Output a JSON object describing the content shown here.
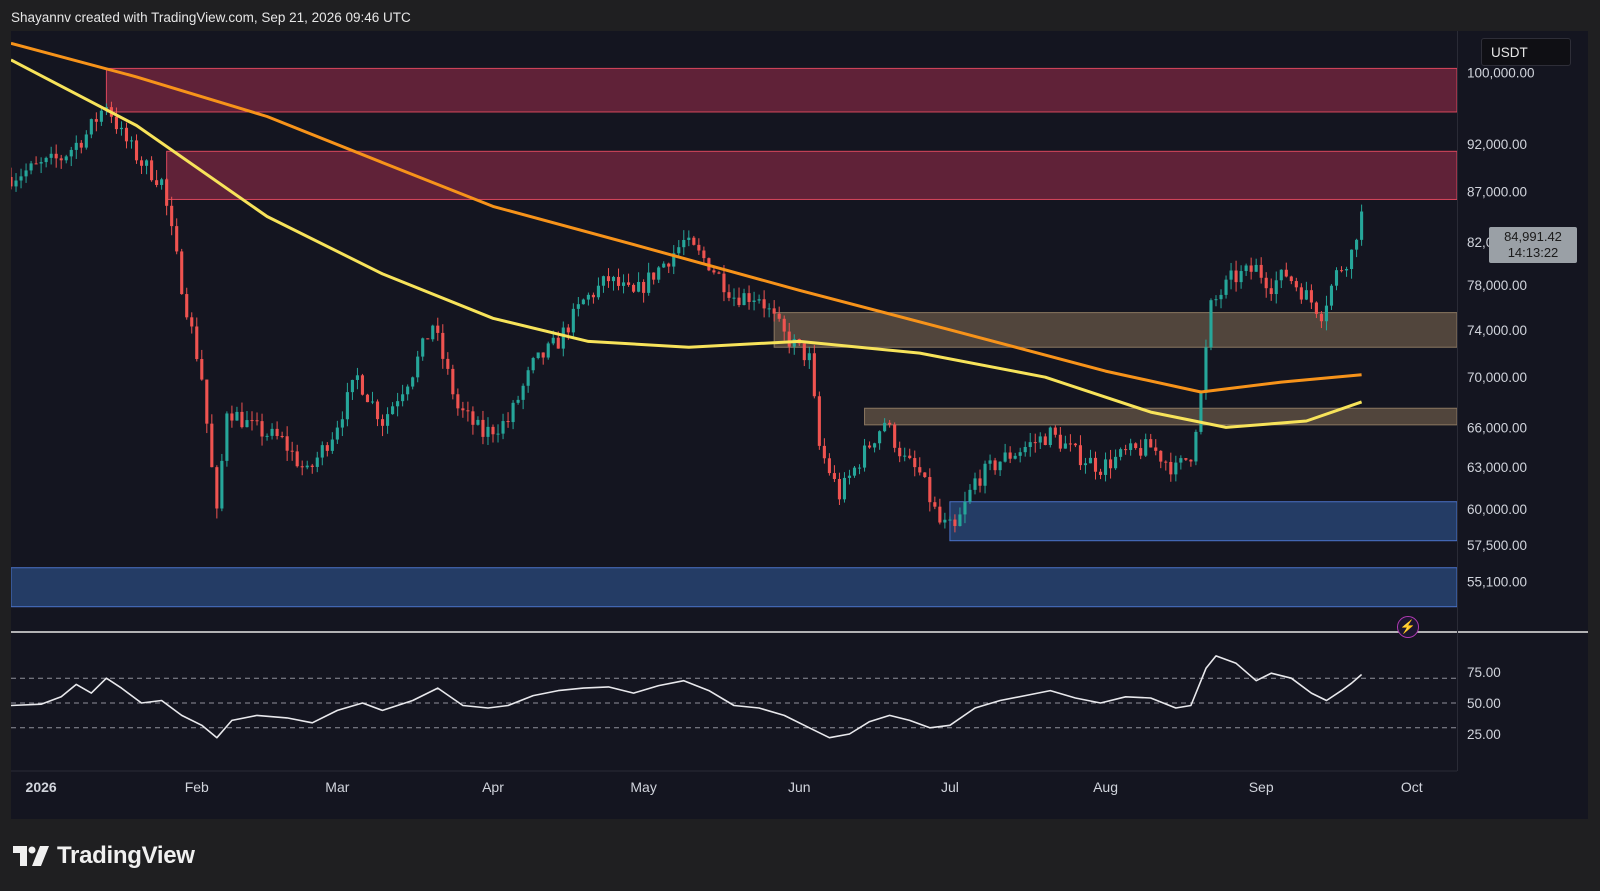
{
  "header": {
    "credit": "Shayannv created with TradingView.com, Sep 21, 2026 09:46 UTC"
  },
  "price_scale": {
    "currency": "USDT",
    "last_price": "84,991.42",
    "countdown": "14:13:22"
  },
  "brand": {
    "name": "TradingView"
  },
  "colors": {
    "background": "#141520",
    "up_candle": "#26a69a",
    "down_candle": "#ef5350",
    "ma_fast": "#f7e35a",
    "ma_slow": "#f7931a",
    "supply_zone": "#7a2740",
    "support_zone": "#2a4a7c",
    "order_block": "#6b5a48",
    "rsi_line": "#e8e8ec"
  },
  "chart_data": [
    {
      "type": "candlestick",
      "symbol_currency": "USDT",
      "yscale": "log",
      "ylim": [
        52000,
        105000
      ],
      "y_ticks": [
        {
          "value": 100000,
          "label": "100,000.00"
        },
        {
          "value": 92000,
          "label": "92,000.00"
        },
        {
          "value": 87000,
          "label": "87,000.00"
        },
        {
          "value": 82000,
          "label": "82,000.00"
        },
        {
          "value": 78000,
          "label": "78,000.00"
        },
        {
          "value": 74000,
          "label": "74,000.00"
        },
        {
          "value": 70000,
          "label": "70,000.00"
        },
        {
          "value": 66000,
          "label": "66,000.00"
        },
        {
          "value": 63000,
          "label": "63,000.00"
        },
        {
          "value": 60000,
          "label": "60,000.00"
        },
        {
          "value": 57500,
          "label": "57,500.00"
        },
        {
          "value": 55100,
          "label": "55,100.00"
        }
      ],
      "x_ticks": [
        {
          "date": "2026-01-01",
          "label": "2026"
        },
        {
          "date": "2026-02-01",
          "label": "Feb"
        },
        {
          "date": "2026-03-01",
          "label": "Mar"
        },
        {
          "date": "2026-04-01",
          "label": "Apr"
        },
        {
          "date": "2026-05-01",
          "label": "May"
        },
        {
          "date": "2026-06-01",
          "label": "Jun"
        },
        {
          "date": "2026-07-01",
          "label": "Jul"
        },
        {
          "date": "2026-08-01",
          "label": "Aug"
        },
        {
          "date": "2026-09-01",
          "label": "Sep"
        },
        {
          "date": "2026-10-01",
          "label": "Oct"
        }
      ],
      "xlim": [
        "2025-12-26",
        "2026-10-10"
      ],
      "last_price": 84991.42,
      "price_path": [
        [
          "2025-12-26",
          88500
        ],
        [
          "2026-01-05",
          90500
        ],
        [
          "2026-01-10",
          93000
        ],
        [
          "2026-01-14",
          96500
        ],
        [
          "2026-01-17",
          93000
        ],
        [
          "2026-01-21",
          90000
        ],
        [
          "2026-01-25",
          88000
        ],
        [
          "2026-01-29",
          78000
        ],
        [
          "2026-02-02",
          70000
        ],
        [
          "2026-02-05",
          59500
        ],
        [
          "2026-02-07",
          67500
        ],
        [
          "2026-02-12",
          66000
        ],
        [
          "2026-02-18",
          65000
        ],
        [
          "2026-02-23",
          62500
        ],
        [
          "2026-02-28",
          65500
        ],
        [
          "2026-03-05",
          70000
        ],
        [
          "2026-03-10",
          66500
        ],
        [
          "2026-03-16",
          70500
        ],
        [
          "2026-03-20",
          74500
        ],
        [
          "2026-03-25",
          67500
        ],
        [
          "2026-03-30",
          65500
        ],
        [
          "2026-04-04",
          66500
        ],
        [
          "2026-04-09",
          71000
        ],
        [
          "2026-04-14",
          73000
        ],
        [
          "2026-04-19",
          76500
        ],
        [
          "2026-04-24",
          78500
        ],
        [
          "2026-04-29",
          77000
        ],
        [
          "2026-05-04",
          79500
        ],
        [
          "2026-05-09",
          82000
        ],
        [
          "2026-05-14",
          80000
        ],
        [
          "2026-05-19",
          77000
        ],
        [
          "2026-05-24",
          77000
        ],
        [
          "2026-05-29",
          73500
        ],
        [
          "2026-06-03",
          71500
        ],
        [
          "2026-06-05",
          64500
        ],
        [
          "2026-06-09",
          61000
        ],
        [
          "2026-06-13",
          63500
        ],
        [
          "2026-06-18",
          66500
        ],
        [
          "2026-06-22",
          63500
        ],
        [
          "2026-06-25",
          62500
        ],
        [
          "2026-06-29",
          59000
        ],
        [
          "2026-07-02",
          58500
        ],
        [
          "2026-07-06",
          62000
        ],
        [
          "2026-07-11",
          63500
        ],
        [
          "2026-07-16",
          64500
        ],
        [
          "2026-07-21",
          65500
        ],
        [
          "2026-07-26",
          64000
        ],
        [
          "2026-07-31",
          63000
        ],
        [
          "2026-08-05",
          64000
        ],
        [
          "2026-08-10",
          64500
        ],
        [
          "2026-08-15",
          62800
        ],
        [
          "2026-08-18",
          64000
        ],
        [
          "2026-08-20",
          68500
        ],
        [
          "2026-08-22",
          76000
        ],
        [
          "2026-08-26",
          78500
        ],
        [
          "2026-08-31",
          79500
        ],
        [
          "2026-09-03",
          78000
        ],
        [
          "2026-09-06",
          79000
        ],
        [
          "2026-09-10",
          77000
        ],
        [
          "2026-09-13",
          75500
        ],
        [
          "2026-09-16",
          79000
        ],
        [
          "2026-09-19",
          81000
        ],
        [
          "2026-09-21",
          84991.42
        ]
      ],
      "moving_averages": [
        {
          "color_key": "ma_slow",
          "points": [
            [
              "2025-12-26",
              103500
            ],
            [
              "2026-01-20",
              99500
            ],
            [
              "2026-02-15",
              95000
            ],
            [
              "2026-03-10",
              90000
            ],
            [
              "2026-04-01",
              85500
            ],
            [
              "2026-05-01",
              81500
            ],
            [
              "2026-06-01",
              77500
            ],
            [
              "2026-07-01",
              74000
            ],
            [
              "2026-08-01",
              70500
            ],
            [
              "2026-08-20",
              68800
            ],
            [
              "2026-09-05",
              69600
            ],
            [
              "2026-09-21",
              70200
            ]
          ]
        },
        {
          "color_key": "ma_fast",
          "points": [
            [
              "2025-12-26",
              101500
            ],
            [
              "2026-01-20",
              94000
            ],
            [
              "2026-02-15",
              84500
            ],
            [
              "2026-03-10",
              79000
            ],
            [
              "2026-04-01",
              75000
            ],
            [
              "2026-04-20",
              73000
            ],
            [
              "2026-05-10",
              72500
            ],
            [
              "2026-06-01",
              73000
            ],
            [
              "2026-06-25",
              72000
            ],
            [
              "2026-07-20",
              70000
            ],
            [
              "2026-08-10",
              67200
            ],
            [
              "2026-08-25",
              66000
            ],
            [
              "2026-09-10",
              66500
            ],
            [
              "2026-09-21",
              68000
            ]
          ]
        }
      ],
      "zones": [
        {
          "kind": "supply",
          "from": "2026-01-14",
          "to": "end",
          "low": 95500,
          "high": 100500,
          "color_key": "supply_zone"
        },
        {
          "kind": "supply",
          "from": "2026-01-26",
          "to": "end",
          "low": 86200,
          "high": 91200,
          "color_key": "supply_zone"
        },
        {
          "kind": "order_block",
          "from": "2026-05-27",
          "to": "end",
          "low": 72500,
          "high": 75500,
          "color_key": "order_block"
        },
        {
          "kind": "order_block",
          "from": "2026-06-14",
          "to": "end",
          "low": 66200,
          "high": 67500,
          "color_key": "order_block"
        },
        {
          "kind": "support",
          "from": "2026-07-01",
          "to": "end",
          "low": 57800,
          "high": 60500,
          "color_key": "support_zone"
        },
        {
          "kind": "support",
          "from": "start",
          "to": "end",
          "low": 53500,
          "high": 56000,
          "color_key": "support_zone"
        }
      ]
    },
    {
      "type": "line",
      "indicator": "RSI",
      "ylim": [
        0,
        100
      ],
      "y_ticks": [
        {
          "value": 75,
          "label": "75.00"
        },
        {
          "value": 50,
          "label": "50.00"
        },
        {
          "value": 25,
          "label": "25.00"
        }
      ],
      "reference_lines": [
        70,
        50,
        30
      ],
      "points": [
        [
          "2025-12-26",
          48
        ],
        [
          "2026-01-01",
          49
        ],
        [
          "2026-01-05",
          55
        ],
        [
          "2026-01-08",
          65
        ],
        [
          "2026-01-11",
          58
        ],
        [
          "2026-01-14",
          70
        ],
        [
          "2026-01-17",
          62
        ],
        [
          "2026-01-21",
          50
        ],
        [
          "2026-01-25",
          52
        ],
        [
          "2026-01-29",
          40
        ],
        [
          "2026-02-02",
          32
        ],
        [
          "2026-02-05",
          22
        ],
        [
          "2026-02-08",
          36
        ],
        [
          "2026-02-13",
          40
        ],
        [
          "2026-02-19",
          38
        ],
        [
          "2026-02-24",
          34
        ],
        [
          "2026-03-01",
          44
        ],
        [
          "2026-03-06",
          50
        ],
        [
          "2026-03-10",
          44
        ],
        [
          "2026-03-16",
          52
        ],
        [
          "2026-03-21",
          62
        ],
        [
          "2026-03-26",
          48
        ],
        [
          "2026-03-31",
          46
        ],
        [
          "2026-04-04",
          48
        ],
        [
          "2026-04-09",
          56
        ],
        [
          "2026-04-14",
          60
        ],
        [
          "2026-04-19",
          62
        ],
        [
          "2026-04-24",
          63
        ],
        [
          "2026-04-29",
          58
        ],
        [
          "2026-05-04",
          64
        ],
        [
          "2026-05-09",
          68
        ],
        [
          "2026-05-14",
          60
        ],
        [
          "2026-05-19",
          48
        ],
        [
          "2026-05-24",
          46
        ],
        [
          "2026-05-29",
          40
        ],
        [
          "2026-06-03",
          30
        ],
        [
          "2026-06-07",
          22
        ],
        [
          "2026-06-11",
          25
        ],
        [
          "2026-06-15",
          35
        ],
        [
          "2026-06-19",
          40
        ],
        [
          "2026-06-23",
          36
        ],
        [
          "2026-06-27",
          30
        ],
        [
          "2026-07-01",
          32
        ],
        [
          "2026-07-06",
          46
        ],
        [
          "2026-07-11",
          52
        ],
        [
          "2026-07-16",
          56
        ],
        [
          "2026-07-21",
          60
        ],
        [
          "2026-07-26",
          54
        ],
        [
          "2026-07-31",
          50
        ],
        [
          "2026-08-05",
          55
        ],
        [
          "2026-08-10",
          54
        ],
        [
          "2026-08-15",
          46
        ],
        [
          "2026-08-18",
          48
        ],
        [
          "2026-08-21",
          78
        ],
        [
          "2026-08-23",
          88
        ],
        [
          "2026-08-27",
          82
        ],
        [
          "2026-08-31",
          68
        ],
        [
          "2026-09-03",
          74
        ],
        [
          "2026-09-07",
          70
        ],
        [
          "2026-09-11",
          58
        ],
        [
          "2026-09-14",
          52
        ],
        [
          "2026-09-17",
          60
        ],
        [
          "2026-09-19",
          66
        ],
        [
          "2026-09-21",
          73
        ]
      ]
    }
  ]
}
